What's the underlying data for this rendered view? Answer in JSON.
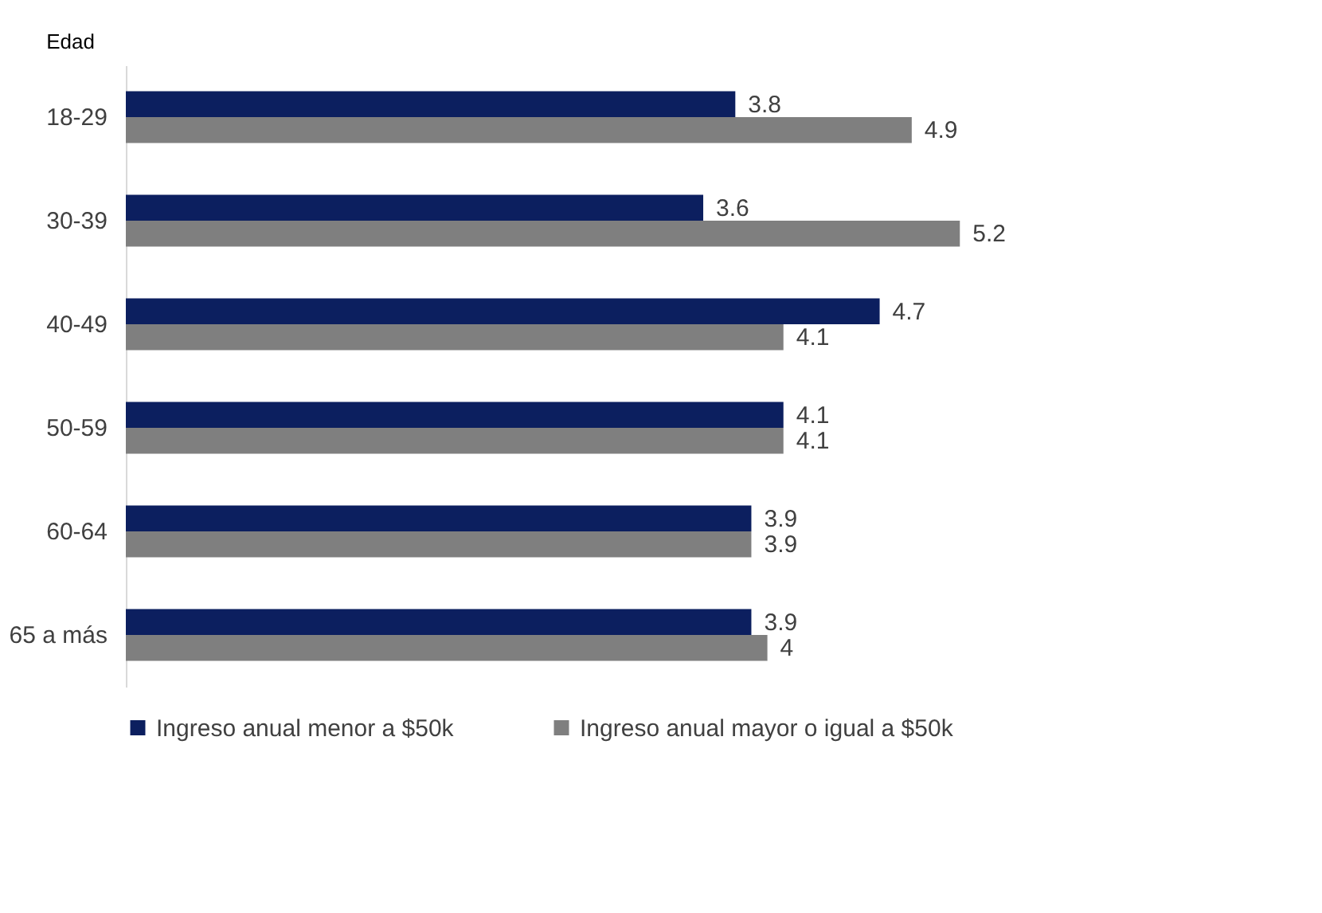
{
  "chart_data": {
    "type": "bar",
    "orientation": "horizontal",
    "ylabel": "Edad",
    "categories": [
      "18-29",
      "30-39",
      "40-49",
      "50-59",
      "60-64",
      "65 a más"
    ],
    "series": [
      {
        "name": "Ingreso anual menor a $50k",
        "color": "#0c1f5f",
        "values": [
          3.8,
          3.6,
          4.7,
          4.1,
          3.9,
          3.9
        ]
      },
      {
        "name": "Ingreso anual mayor o igual a $50k",
        "color": "#7f7f7f",
        "values": [
          4.9,
          5.2,
          4.1,
          4.1,
          3.9,
          4
        ]
      }
    ],
    "data_labels": true,
    "legend": "bottom"
  }
}
